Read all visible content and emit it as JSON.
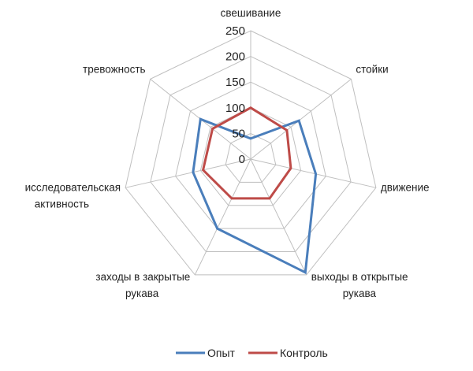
{
  "chart_data": {
    "type": "radar",
    "title": "",
    "categories": [
      [
        "свешивание"
      ],
      [
        "стойки"
      ],
      [
        "движение"
      ],
      [
        "выходы в открытые",
        "рукава"
      ],
      [
        "заходы в закрытые",
        "рукава"
      ],
      [
        "исследовательская",
        "активность"
      ],
      [
        "тревожность"
      ]
    ],
    "ticks": [
      "0",
      "50",
      "100",
      "150",
      "200",
      "250"
    ],
    "rmax": 250,
    "grid": true,
    "legend_position": "bottom",
    "series": [
      {
        "name": "Опыт",
        "color": "#4a7ebb",
        "values": [
          40,
          120,
          130,
          245,
          150,
          115,
          125
        ]
      },
      {
        "name": "Контроль",
        "color": "#be4b48",
        "values": [
          100,
          90,
          80,
          85,
          85,
          95,
          95
        ]
      }
    ]
  }
}
